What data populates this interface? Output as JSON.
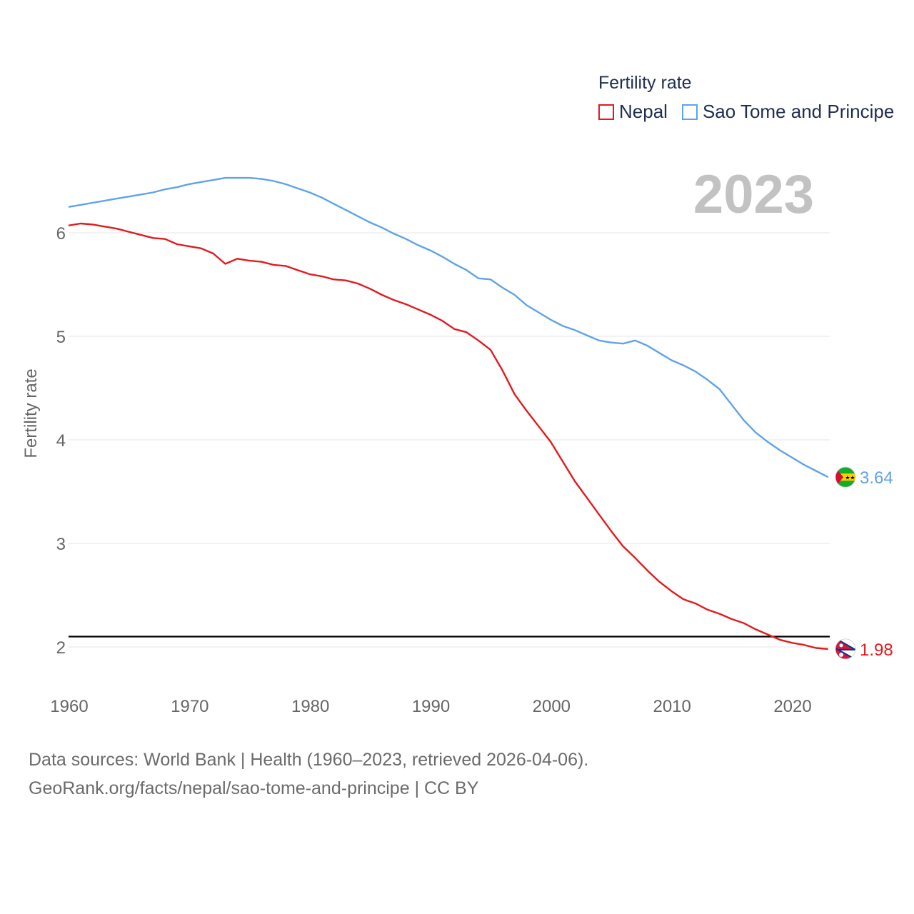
{
  "legend": {
    "title": "Fertility rate",
    "items": [
      {
        "name": "Nepal",
        "color": "#e31a1c"
      },
      {
        "name": "Sao Tome and Principe",
        "color": "#5fa3e6"
      }
    ]
  },
  "year_label": "2023",
  "footer": {
    "line1": "Data sources: World Bank | Health (1960–2023, retrieved 2026-04-06).",
    "line2": "GeoRank.org/facts/nepal/sao-tome-and-principe | CC BY"
  },
  "chart_data": {
    "type": "line",
    "title": "",
    "xlabel": "",
    "ylabel": "Fertility rate",
    "xlim": [
      1960,
      2024.5
    ],
    "ylim": [
      1.7,
      6.85
    ],
    "x_ticks": [
      1960,
      1970,
      1980,
      1990,
      2000,
      2010,
      2020
    ],
    "y_ticks": [
      2,
      3,
      4,
      5,
      6
    ],
    "reference_line": {
      "y": 2.1,
      "color": "#000000"
    },
    "grid": true,
    "series": [
      {
        "name": "Nepal",
        "color": "#e31a1c",
        "end_label": "1.98",
        "flag": "nepal-flag",
        "x": [
          1960,
          1961,
          1962,
          1963,
          1964,
          1965,
          1966,
          1967,
          1968,
          1969,
          1970,
          1971,
          1972,
          1973,
          1974,
          1975,
          1976,
          1977,
          1978,
          1979,
          1980,
          1981,
          1982,
          1983,
          1984,
          1985,
          1986,
          1987,
          1988,
          1989,
          1990,
          1991,
          1992,
          1993,
          1994,
          1995,
          1996,
          1997,
          1998,
          1999,
          2000,
          2001,
          2002,
          2003,
          2004,
          2005,
          2006,
          2007,
          2008,
          2009,
          2010,
          2011,
          2012,
          2013,
          2014,
          2015,
          2016,
          2017,
          2018,
          2019,
          2020,
          2021,
          2022,
          2023
        ],
        "values": [
          6.07,
          6.09,
          6.08,
          6.06,
          6.04,
          6.01,
          5.98,
          5.95,
          5.94,
          5.89,
          5.87,
          5.85,
          5.8,
          5.7,
          5.75,
          5.73,
          5.72,
          5.69,
          5.68,
          5.64,
          5.6,
          5.58,
          5.55,
          5.54,
          5.51,
          5.46,
          5.4,
          5.35,
          5.31,
          5.26,
          5.21,
          5.15,
          5.07,
          5.04,
          4.96,
          4.87,
          4.67,
          4.44,
          4.28,
          4.13,
          3.98,
          3.79,
          3.6,
          3.44,
          3.28,
          3.12,
          2.97,
          2.86,
          2.74,
          2.63,
          2.54,
          2.46,
          2.42,
          2.36,
          2.32,
          2.27,
          2.23,
          2.17,
          2.12,
          2.07,
          2.04,
          2.02,
          1.99,
          1.98
        ]
      },
      {
        "name": "Sao Tome and Principe",
        "color": "#5fa3e6",
        "end_label": "3.64",
        "flag": "sao-tome-flag",
        "x": [
          1960,
          1961,
          1962,
          1963,
          1964,
          1965,
          1966,
          1967,
          1968,
          1969,
          1970,
          1971,
          1972,
          1973,
          1974,
          1975,
          1976,
          1977,
          1978,
          1979,
          1980,
          1981,
          1982,
          1983,
          1984,
          1985,
          1986,
          1987,
          1988,
          1989,
          1990,
          1991,
          1992,
          1993,
          1994,
          1995,
          1996,
          1997,
          1998,
          1999,
          2000,
          2001,
          2002,
          2003,
          2004,
          2005,
          2006,
          2007,
          2008,
          2009,
          2010,
          2011,
          2012,
          2013,
          2014,
          2015,
          2016,
          2017,
          2018,
          2019,
          2020,
          2021,
          2022,
          2023
        ],
        "values": [
          6.25,
          6.27,
          6.29,
          6.31,
          6.33,
          6.35,
          6.37,
          6.39,
          6.42,
          6.44,
          6.47,
          6.49,
          6.51,
          6.53,
          6.53,
          6.53,
          6.52,
          6.5,
          6.47,
          6.43,
          6.39,
          6.34,
          6.28,
          6.22,
          6.16,
          6.1,
          6.05,
          5.99,
          5.94,
          5.88,
          5.83,
          5.77,
          5.7,
          5.64,
          5.56,
          5.55,
          5.47,
          5.4,
          5.3,
          5.23,
          5.16,
          5.1,
          5.06,
          5.01,
          4.96,
          4.94,
          4.93,
          4.96,
          4.91,
          4.84,
          4.77,
          4.72,
          4.66,
          4.58,
          4.49,
          4.34,
          4.19,
          4.07,
          3.98,
          3.9,
          3.83,
          3.76,
          3.7,
          3.64
        ]
      }
    ]
  }
}
